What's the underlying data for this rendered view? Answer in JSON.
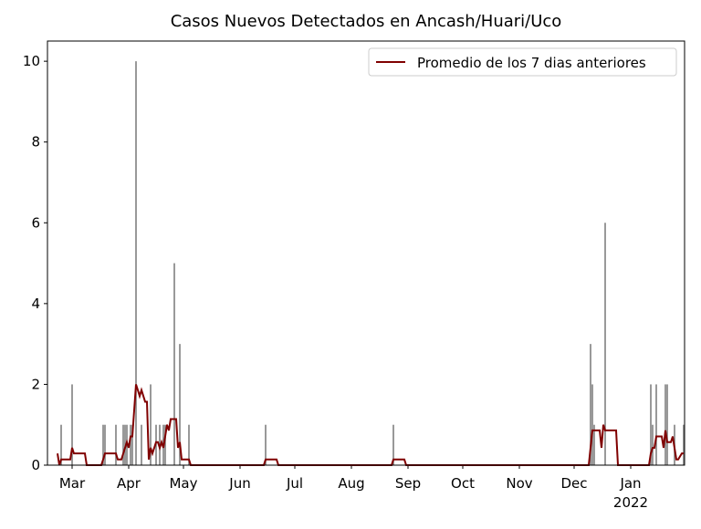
{
  "chart_data": {
    "type": "bar",
    "title": "Casos Nuevos Detectados en Ancash/Huari/Uco",
    "x": [
      -6,
      0,
      17,
      18,
      24,
      28,
      29,
      30,
      32,
      33,
      35,
      38,
      43,
      46,
      48,
      50,
      51,
      56,
      59,
      64,
      106,
      176,
      284,
      285,
      286,
      292,
      317,
      318,
      320,
      325,
      326,
      330,
      335
    ],
    "values": [
      1,
      2,
      1,
      1,
      1,
      1,
      1,
      1,
      1,
      1,
      10,
      1,
      2,
      1,
      1,
      1,
      1,
      5,
      3,
      1,
      1,
      1,
      3,
      2,
      1,
      6,
      2,
      1,
      2,
      2,
      2,
      1,
      1
    ],
    "color": "#808080",
    "line": {
      "name": "Promedio de los 7 dias anteriores",
      "color": "#800000",
      "x": [
        -8,
        -7,
        -6,
        -1,
        0,
        1,
        7,
        8,
        16,
        17,
        18,
        24,
        25,
        27,
        29,
        30,
        31,
        32,
        33,
        35,
        36,
        37,
        38,
        40,
        41,
        42,
        43,
        44,
        46,
        47,
        48,
        49,
        50,
        52,
        53,
        54,
        57,
        58,
        59,
        60,
        64,
        65,
        105,
        106,
        112,
        113,
        175,
        176,
        182,
        183,
        283,
        285,
        289,
        290,
        291,
        292,
        298,
        299,
        316,
        317,
        318,
        319,
        320,
        323,
        324,
        325,
        326,
        328,
        329,
        331,
        332,
        334,
        335
      ],
      "values": [
        0.29,
        0,
        0.14,
        0.14,
        0.43,
        0.29,
        0.29,
        0,
        0,
        0.14,
        0.29,
        0.29,
        0.14,
        0.14,
        0.43,
        0.57,
        0.43,
        0.71,
        0.71,
        2,
        1.86,
        1.71,
        1.86,
        1.57,
        1.57,
        0.14,
        0.43,
        0.29,
        0.57,
        0.57,
        0.43,
        0.57,
        0.43,
        1,
        0.86,
        1.14,
        1.14,
        0.43,
        0.57,
        0.14,
        0.14,
        0,
        0,
        0.14,
        0.14,
        0,
        0,
        0.14,
        0.14,
        0,
        0,
        0.86,
        0.86,
        0.43,
        1,
        0.86,
        0.86,
        0,
        0,
        0.29,
        0.43,
        0.43,
        0.71,
        0.71,
        0.43,
        0.86,
        0.57,
        0.57,
        0.71,
        0.14,
        0.14,
        0.29,
        0.29
      ]
    },
    "xlim": [
      -13.5,
      335.5
    ],
    "xticks": [
      {
        "value": 0,
        "label": "Mar"
      },
      {
        "value": 31,
        "label": "Apr"
      },
      {
        "value": 61,
        "label": "May"
      },
      {
        "value": 92,
        "label": "Jun"
      },
      {
        "value": 122,
        "label": "Jul"
      },
      {
        "value": 153,
        "label": "Aug"
      },
      {
        "value": 184,
        "label": "Sep"
      },
      {
        "value": 214,
        "label": "Oct"
      },
      {
        "value": 245,
        "label": "Nov"
      },
      {
        "value": 275,
        "label": "Dec"
      },
      {
        "value": 306,
        "label": "Jan\n2022"
      }
    ],
    "ylim": [
      0,
      10.5
    ],
    "yticks": [
      0,
      2,
      4,
      6,
      8,
      10
    ],
    "legend": "upper right"
  }
}
